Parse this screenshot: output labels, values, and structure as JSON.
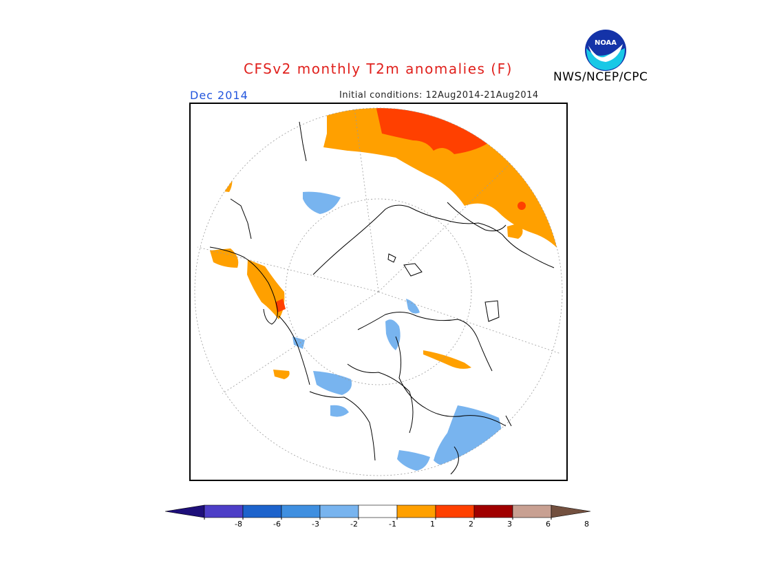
{
  "header": {
    "title": "CFSv2 monthly T2m anomalies (F)",
    "valid_month": "Dec 2014",
    "initial_conditions": "Initial conditions: 12Aug2014-21Aug2014",
    "agency": "NWS/NCEP/CPC",
    "logo_text": "NOAA"
  },
  "map": {
    "projection": "north-polar-stereographic",
    "anomaly_regions": [
      {
        "region": "Central & East Siberia / NE Asia",
        "category": "+1 to +2"
      },
      {
        "region": "Central Siberia core",
        "category": "+2 to +3"
      },
      {
        "region": "Southeast Alaska & Western Canada coast",
        "category": "+1 to +2"
      },
      {
        "region": "Far NE Asia coast",
        "category": "+1 to +2"
      },
      {
        "region": "Greenland / Baffin area",
        "category": "-1 to -2"
      },
      {
        "region": "Northern Europe / Scandinavia",
        "category": "-1 to -2"
      },
      {
        "region": "Central North America / Hudson Bay",
        "category": "-1 to -2"
      }
    ]
  },
  "legend": {
    "colors": [
      "#1e0f7a",
      "#4d3ec7",
      "#1d63cc",
      "#3f8fe0",
      "#78b4ef",
      "#ffffff",
      "#ffa000",
      "#ff4000",
      "#a00000",
      "#c8a092",
      "#73503f"
    ],
    "labels": [
      "-8",
      "-6",
      "-3",
      "-2",
      "-1",
      "1",
      "2",
      "3",
      "6",
      "8"
    ]
  }
}
